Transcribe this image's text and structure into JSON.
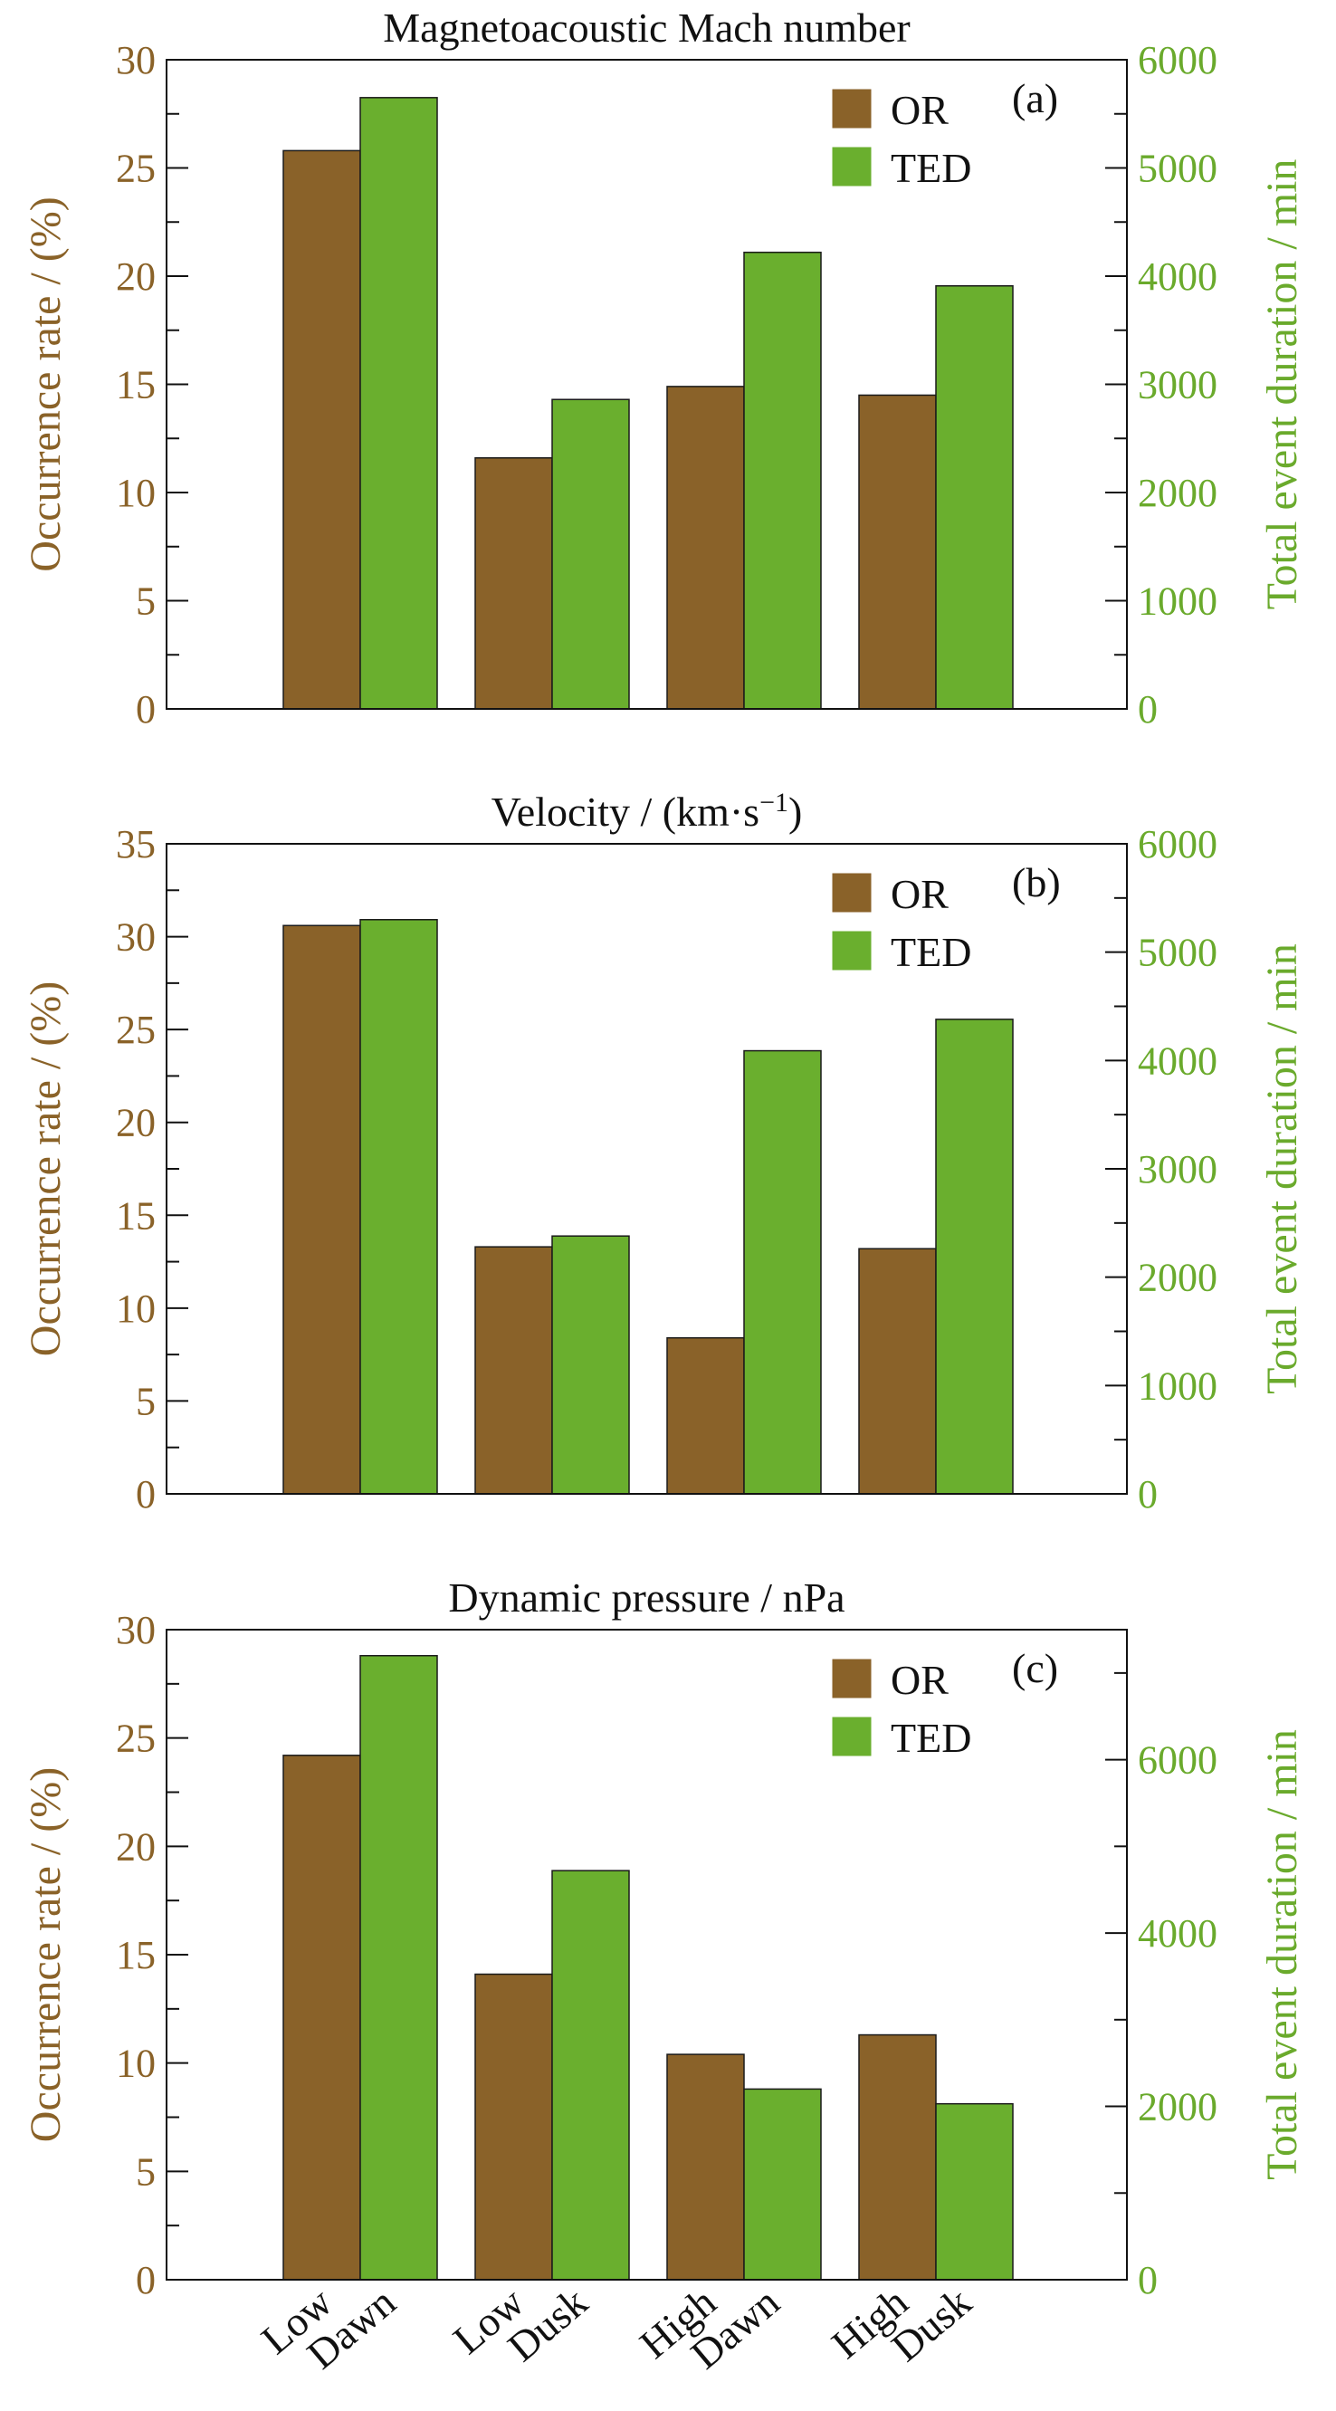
{
  "colors": {
    "OR": "#8a6229",
    "TED": "#6aaf2e",
    "left_axis": "#8a6228",
    "right_axis": "#6aaa2c"
  },
  "chart_data": [
    {
      "type": "bar",
      "title": "Magnetoacoustic Mach number",
      "panel_label": "(a)",
      "ylabel": "Occurrence rate / (%)",
      "y2label": "Total event duration / min",
      "ylim": [
        0,
        30
      ],
      "y2lim": [
        0,
        6000
      ],
      "yticks": [
        0,
        5,
        10,
        15,
        20,
        25,
        30
      ],
      "y2ticks": [
        0,
        1000,
        2000,
        3000,
        4000,
        5000,
        6000
      ],
      "categories": [
        [
          "Low",
          "Dawn"
        ],
        [
          "Low",
          "Dusk"
        ],
        [
          "High",
          "Dawn"
        ],
        [
          "High",
          "Dusk"
        ]
      ],
      "series": [
        {
          "name": "OR",
          "axis": "left",
          "values": [
            25.8,
            11.6,
            14.9,
            14.5
          ]
        },
        {
          "name": "TED",
          "axis": "right",
          "values": [
            5650,
            2860,
            4220,
            3910
          ]
        }
      ],
      "legend": "top-right",
      "grid": false
    },
    {
      "type": "bar",
      "title": "Velocity / (km·s",
      "title_sup": "−1",
      "title_end": ")",
      "panel_label": "(b)",
      "ylabel": "Occurrence rate / (%)",
      "y2label": "Total event duration / min",
      "ylim": [
        0,
        35
      ],
      "y2lim": [
        0,
        6000
      ],
      "yticks": [
        0,
        5,
        10,
        15,
        20,
        25,
        30,
        35
      ],
      "y2ticks": [
        0,
        1000,
        2000,
        3000,
        4000,
        5000,
        6000
      ],
      "categories": [
        [
          "Low",
          "Dawn"
        ],
        [
          "Low",
          "Dusk"
        ],
        [
          "High",
          "Dawn"
        ],
        [
          "High",
          "Dusk"
        ]
      ],
      "series": [
        {
          "name": "OR",
          "axis": "left",
          "values": [
            30.6,
            13.3,
            8.4,
            13.2
          ]
        },
        {
          "name": "TED",
          "axis": "right",
          "values": [
            5300,
            2380,
            4090,
            4380
          ]
        }
      ],
      "legend": "top-right",
      "grid": false
    },
    {
      "type": "bar",
      "title": "Dynamic pressure / nPa",
      "panel_label": "(c)",
      "ylabel": "Occurrence rate / (%)",
      "y2label": "Total event duration / min",
      "ylim": [
        0,
        30
      ],
      "y2lim": [
        0,
        7500
      ],
      "yticks": [
        0,
        5,
        10,
        15,
        20,
        25,
        30
      ],
      "y2ticks": [
        0,
        2000,
        4000,
        6000
      ],
      "categories": [
        [
          "Low",
          "Dawn"
        ],
        [
          "Low",
          "Dusk"
        ],
        [
          "High",
          "Dawn"
        ],
        [
          "High",
          "Dusk"
        ]
      ],
      "series": [
        {
          "name": "OR",
          "axis": "left",
          "values": [
            24.2,
            14.1,
            10.4,
            11.3
          ]
        },
        {
          "name": "TED",
          "axis": "right",
          "values": [
            7200,
            4720,
            2200,
            2030
          ]
        }
      ],
      "legend": "top-right",
      "grid": false
    }
  ]
}
